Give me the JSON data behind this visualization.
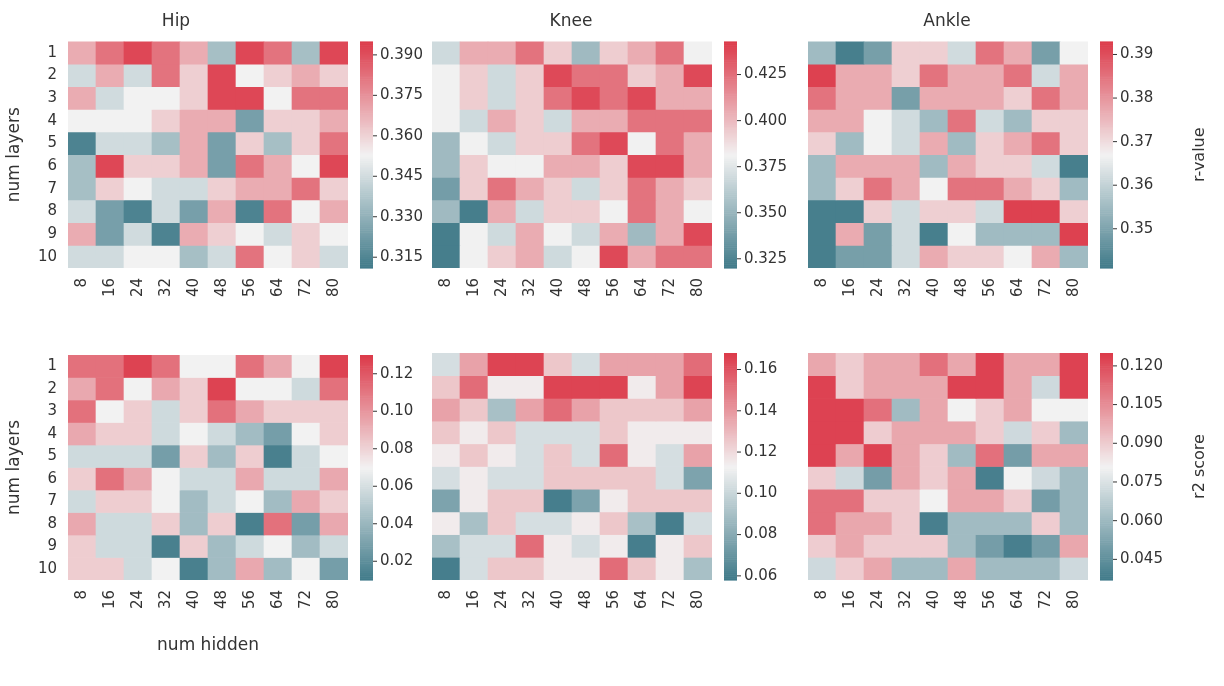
{
  "chart_data": [
    {
      "type": "heatmap",
      "title": "Hip",
      "ylabel": "num layers",
      "categories": [
        "8",
        "16",
        "24",
        "32",
        "40",
        "48",
        "56",
        "64",
        "72",
        "80"
      ],
      "y_categories": [
        "1",
        "2",
        "3",
        "4",
        "5",
        "6",
        "7",
        "8",
        "9",
        "10"
      ],
      "clim": [
        0.311,
        0.395
      ],
      "cticks": [
        {
          "value": 0.315,
          "label": "0.315"
        },
        {
          "value": 0.33,
          "label": "0.330"
        },
        {
          "value": 0.345,
          "label": "0.345"
        },
        {
          "value": 0.36,
          "label": "0.360"
        },
        {
          "value": 0.375,
          "label": "0.375"
        },
        {
          "value": 0.39,
          "label": "0.390"
        }
      ],
      "cells": [
        [
          0.369,
          0.382,
          0.392,
          0.382,
          0.369,
          0.335,
          0.392,
          0.382,
          0.335,
          0.392
        ],
        [
          0.345,
          0.369,
          0.345,
          0.382,
          0.361,
          0.392,
          0.353,
          0.361,
          0.369,
          0.361
        ],
        [
          0.369,
          0.345,
          0.353,
          0.353,
          0.361,
          0.392,
          0.392,
          0.353,
          0.382,
          0.382
        ],
        [
          0.353,
          0.353,
          0.353,
          0.361,
          0.369,
          0.369,
          0.324,
          0.361,
          0.361,
          0.369
        ],
        [
          0.314,
          0.345,
          0.345,
          0.335,
          0.369,
          0.324,
          0.361,
          0.335,
          0.361,
          0.382
        ],
        [
          0.335,
          0.392,
          0.361,
          0.361,
          0.369,
          0.324,
          0.382,
          0.369,
          0.353,
          0.392
        ],
        [
          0.335,
          0.361,
          0.353,
          0.345,
          0.345,
          0.361,
          0.369,
          0.369,
          0.382,
          0.361
        ],
        [
          0.345,
          0.324,
          0.314,
          0.345,
          0.324,
          0.369,
          0.314,
          0.382,
          0.353,
          0.369
        ],
        [
          0.369,
          0.324,
          0.345,
          0.314,
          0.369,
          0.361,
          0.353,
          0.345,
          0.361,
          0.353
        ],
        [
          0.345,
          0.345,
          0.353,
          0.353,
          0.335,
          0.345,
          0.382,
          0.353,
          0.361,
          0.345
        ]
      ]
    },
    {
      "type": "heatmap",
      "title": "Knee",
      "tick_labels": "x",
      "categories": [
        "8",
        "16",
        "24",
        "32",
        "40",
        "48",
        "56",
        "64",
        "72",
        "80"
      ],
      "y_categories": [
        "1",
        "2",
        "3",
        "4",
        "5",
        "6",
        "7",
        "8",
        "9",
        "10"
      ],
      "clim": [
        0.32,
        0.443
      ],
      "cticks": [
        {
          "value": 0.325,
          "label": "0.325"
        },
        {
          "value": 0.35,
          "label": "0.350"
        },
        {
          "value": 0.375,
          "label": "0.375"
        },
        {
          "value": 0.4,
          "label": "0.400"
        },
        {
          "value": 0.425,
          "label": "0.425"
        }
      ],
      "cells": [
        [
          0.369,
          0.405,
          0.405,
          0.424,
          0.394,
          0.353,
          0.394,
          0.405,
          0.424,
          0.381
        ],
        [
          0.381,
          0.394,
          0.369,
          0.394,
          0.438,
          0.424,
          0.424,
          0.394,
          0.405,
          0.438
        ],
        [
          0.381,
          0.394,
          0.369,
          0.394,
          0.424,
          0.438,
          0.424,
          0.438,
          0.405,
          0.405
        ],
        [
          0.381,
          0.369,
          0.405,
          0.394,
          0.369,
          0.405,
          0.405,
          0.424,
          0.424,
          0.424
        ],
        [
          0.353,
          0.381,
          0.369,
          0.394,
          0.394,
          0.424,
          0.438,
          0.381,
          0.424,
          0.405
        ],
        [
          0.353,
          0.394,
          0.381,
          0.381,
          0.405,
          0.405,
          0.394,
          0.438,
          0.438,
          0.405
        ],
        [
          0.338,
          0.394,
          0.424,
          0.405,
          0.394,
          0.369,
          0.394,
          0.424,
          0.405,
          0.394
        ],
        [
          0.353,
          0.322,
          0.405,
          0.369,
          0.394,
          0.394,
          0.381,
          0.424,
          0.405,
          0.381
        ],
        [
          0.322,
          0.381,
          0.369,
          0.405,
          0.381,
          0.369,
          0.405,
          0.353,
          0.405,
          0.438
        ],
        [
          0.322,
          0.381,
          0.394,
          0.405,
          0.369,
          0.381,
          0.438,
          0.405,
          0.424,
          0.424
        ]
      ]
    },
    {
      "type": "heatmap",
      "title": "Ankle",
      "clabel": "r-value",
      "tick_labels": "x",
      "categories": [
        "8",
        "16",
        "24",
        "32",
        "40",
        "48",
        "56",
        "64",
        "72",
        "80"
      ],
      "y_categories": [
        "1",
        "2",
        "3",
        "4",
        "5",
        "6",
        "7",
        "8",
        "9",
        "10"
      ],
      "clim": [
        0.341,
        0.393
      ],
      "cticks": [
        {
          "value": 0.35,
          "label": "0.35"
        },
        {
          "value": 0.36,
          "label": "0.36"
        },
        {
          "value": 0.37,
          "label": "0.37"
        },
        {
          "value": 0.38,
          "label": "0.38"
        },
        {
          "value": 0.39,
          "label": "0.39"
        }
      ],
      "cells": [
        [
          0.355,
          0.342,
          0.349,
          0.372,
          0.372,
          0.362,
          0.385,
          0.377,
          0.349,
          0.367
        ],
        [
          0.392,
          0.377,
          0.377,
          0.372,
          0.385,
          0.377,
          0.377,
          0.385,
          0.362,
          0.377
        ],
        [
          0.385,
          0.377,
          0.377,
          0.349,
          0.377,
          0.377,
          0.377,
          0.372,
          0.385,
          0.377
        ],
        [
          0.377,
          0.377,
          0.367,
          0.362,
          0.355,
          0.385,
          0.362,
          0.355,
          0.372,
          0.372
        ],
        [
          0.372,
          0.355,
          0.367,
          0.362,
          0.377,
          0.355,
          0.372,
          0.377,
          0.385,
          0.372
        ],
        [
          0.355,
          0.377,
          0.377,
          0.377,
          0.355,
          0.377,
          0.372,
          0.372,
          0.362,
          0.342
        ],
        [
          0.355,
          0.372,
          0.385,
          0.377,
          0.367,
          0.385,
          0.385,
          0.377,
          0.372,
          0.355
        ],
        [
          0.342,
          0.342,
          0.372,
          0.362,
          0.372,
          0.372,
          0.362,
          0.392,
          0.392,
          0.372
        ],
        [
          0.342,
          0.377,
          0.349,
          0.362,
          0.342,
          0.367,
          0.355,
          0.355,
          0.355,
          0.392
        ],
        [
          0.342,
          0.349,
          0.349,
          0.362,
          0.377,
          0.372,
          0.372,
          0.367,
          0.377,
          0.355
        ]
      ]
    },
    {
      "type": "heatmap",
      "xlabel": "num hidden",
      "ylabel": "num layers",
      "categories": [
        "8",
        "16",
        "24",
        "32",
        "40",
        "48",
        "56",
        "64",
        "72",
        "80"
      ],
      "y_categories": [
        "1",
        "2",
        "3",
        "4",
        "5",
        "6",
        "7",
        "8",
        "9",
        "10"
      ],
      "clim": [
        0.01,
        0.13
      ],
      "cticks": [
        {
          "value": 0.02,
          "label": "0.02"
        },
        {
          "value": 0.04,
          "label": "0.04"
        },
        {
          "value": 0.06,
          "label": "0.06"
        },
        {
          "value": 0.08,
          "label": "0.08"
        },
        {
          "value": 0.1,
          "label": "0.10"
        },
        {
          "value": 0.12,
          "label": "0.12"
        }
      ],
      "cells": [
        [
          0.112,
          0.112,
          0.127,
          0.112,
          0.07,
          0.07,
          0.112,
          0.094,
          0.07,
          0.127
        ],
        [
          0.094,
          0.112,
          0.07,
          0.094,
          0.082,
          0.127,
          0.07,
          0.07,
          0.058,
          0.112
        ],
        [
          0.112,
          0.07,
          0.082,
          0.058,
          0.082,
          0.112,
          0.094,
          0.082,
          0.082,
          0.082
        ],
        [
          0.094,
          0.082,
          0.082,
          0.058,
          0.07,
          0.058,
          0.043,
          0.028,
          0.07,
          0.082
        ],
        [
          0.058,
          0.058,
          0.058,
          0.028,
          0.082,
          0.043,
          0.082,
          0.013,
          0.058,
          0.07
        ],
        [
          0.082,
          0.112,
          0.094,
          0.07,
          0.058,
          0.058,
          0.094,
          0.058,
          0.058,
          0.094
        ],
        [
          0.058,
          0.082,
          0.082,
          0.07,
          0.043,
          0.058,
          0.07,
          0.043,
          0.094,
          0.082
        ],
        [
          0.094,
          0.058,
          0.058,
          0.082,
          0.043,
          0.082,
          0.013,
          0.112,
          0.028,
          0.094
        ],
        [
          0.082,
          0.058,
          0.058,
          0.013,
          0.082,
          0.043,
          0.058,
          0.07,
          0.043,
          0.058
        ],
        [
          0.082,
          0.082,
          0.058,
          0.07,
          0.013,
          0.043,
          0.094,
          0.043,
          0.07,
          0.028
        ]
      ]
    },
    {
      "type": "heatmap",
      "tick_labels": "x",
      "categories": [
        "8",
        "16",
        "24",
        "32",
        "40",
        "48",
        "56",
        "64",
        "72",
        "80"
      ],
      "y_categories": [
        "1",
        "2",
        "3",
        "4",
        "5",
        "6",
        "7",
        "8",
        "9",
        "10"
      ],
      "clim": [
        0.058,
        0.168
      ],
      "cticks": [
        {
          "value": 0.06,
          "label": "0.06"
        },
        {
          "value": 0.08,
          "label": "0.08"
        },
        {
          "value": 0.1,
          "label": "0.10"
        },
        {
          "value": 0.12,
          "label": "0.12"
        },
        {
          "value": 0.14,
          "label": "0.14"
        },
        {
          "value": 0.16,
          "label": "0.16"
        }
      ],
      "cells": [
        [
          0.104,
          0.137,
          0.165,
          0.165,
          0.126,
          0.104,
          0.137,
          0.137,
          0.137,
          0.153
        ],
        [
          0.126,
          0.153,
          0.115,
          0.115,
          0.165,
          0.165,
          0.165,
          0.115,
          0.137,
          0.165
        ],
        [
          0.137,
          0.126,
          0.09,
          0.137,
          0.153,
          0.137,
          0.126,
          0.126,
          0.126,
          0.137
        ],
        [
          0.126,
          0.115,
          0.126,
          0.104,
          0.104,
          0.104,
          0.126,
          0.115,
          0.115,
          0.115
        ],
        [
          0.115,
          0.126,
          0.115,
          0.104,
          0.126,
          0.104,
          0.153,
          0.115,
          0.104,
          0.137
        ],
        [
          0.104,
          0.115,
          0.104,
          0.104,
          0.126,
          0.126,
          0.126,
          0.126,
          0.104,
          0.077
        ],
        [
          0.077,
          0.115,
          0.126,
          0.126,
          0.06,
          0.077,
          0.115,
          0.126,
          0.126,
          0.126
        ],
        [
          0.115,
          0.09,
          0.126,
          0.104,
          0.104,
          0.115,
          0.126,
          0.09,
          0.06,
          0.104
        ],
        [
          0.09,
          0.104,
          0.104,
          0.153,
          0.115,
          0.104,
          0.115,
          0.06,
          0.115,
          0.126
        ],
        [
          0.06,
          0.104,
          0.126,
          0.126,
          0.115,
          0.115,
          0.153,
          0.126,
          0.115,
          0.09
        ]
      ]
    },
    {
      "type": "heatmap",
      "clabel": "r2 score",
      "tick_labels": "x",
      "categories": [
        "8",
        "16",
        "24",
        "32",
        "40",
        "48",
        "56",
        "64",
        "72",
        "80"
      ],
      "y_categories": [
        "1",
        "2",
        "3",
        "4",
        "5",
        "6",
        "7",
        "8",
        "9",
        "10"
      ],
      "clim": [
        0.037,
        0.125
      ],
      "cticks": [
        {
          "value": 0.045,
          "label": "0.045"
        },
        {
          "value": 0.06,
          "label": "0.060"
        },
        {
          "value": 0.075,
          "label": "0.075"
        },
        {
          "value": 0.09,
          "label": "0.090"
        },
        {
          "value": 0.105,
          "label": "0.105"
        },
        {
          "value": 0.12,
          "label": "0.120"
        }
      ],
      "cells": [
        [
          0.099,
          0.09,
          0.099,
          0.099,
          0.112,
          0.099,
          0.123,
          0.099,
          0.099,
          0.123
        ],
        [
          0.123,
          0.09,
          0.099,
          0.099,
          0.099,
          0.123,
          0.123,
          0.099,
          0.072,
          0.123
        ],
        [
          0.123,
          0.123,
          0.112,
          0.061,
          0.099,
          0.081,
          0.09,
          0.099,
          0.081,
          0.081
        ],
        [
          0.123,
          0.123,
          0.09,
          0.099,
          0.099,
          0.099,
          0.09,
          0.072,
          0.09,
          0.061
        ],
        [
          0.123,
          0.099,
          0.123,
          0.099,
          0.09,
          0.061,
          0.112,
          0.05,
          0.099,
          0.099
        ],
        [
          0.09,
          0.072,
          0.05,
          0.099,
          0.09,
          0.099,
          0.039,
          0.081,
          0.072,
          0.061
        ],
        [
          0.112,
          0.112,
          0.09,
          0.09,
          0.081,
          0.099,
          0.099,
          0.09,
          0.05,
          0.061
        ],
        [
          0.112,
          0.099,
          0.099,
          0.09,
          0.039,
          0.061,
          0.061,
          0.061,
          0.09,
          0.061
        ],
        [
          0.09,
          0.099,
          0.09,
          0.09,
          0.09,
          0.061,
          0.05,
          0.039,
          0.05,
          0.099
        ],
        [
          0.072,
          0.09,
          0.099,
          0.061,
          0.061,
          0.099,
          0.061,
          0.061,
          0.061,
          0.072
        ]
      ]
    }
  ]
}
